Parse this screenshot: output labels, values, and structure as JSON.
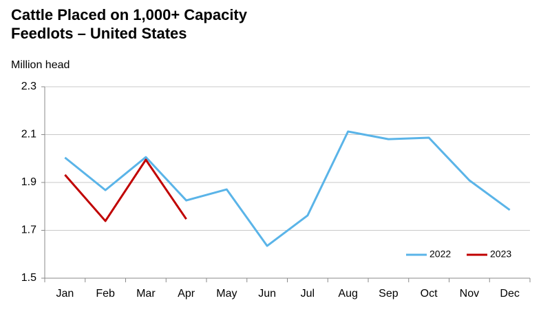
{
  "chart_data": {
    "type": "line",
    "title": "Cattle Placed on 1,000+ Capacity Feedlots – United States",
    "y_label": "Million head",
    "categories": [
      "Jan",
      "Feb",
      "Mar",
      "Apr",
      "May",
      "Jun",
      "Jul",
      "Aug",
      "Sep",
      "Oct",
      "Nov",
      "Dec"
    ],
    "series": [
      {
        "name": "2022",
        "color": "#5ab4e8",
        "values": [
          2.004,
          1.868,
          2.006,
          1.825,
          1.871,
          1.635,
          1.762,
          2.113,
          2.081,
          2.087,
          1.909,
          1.785
        ]
      },
      {
        "name": "2023",
        "color": "#c00000",
        "values": [
          1.932,
          1.739,
          1.995,
          1.747,
          null,
          null,
          null,
          null,
          null,
          null,
          null,
          null
        ]
      }
    ],
    "ylim": [
      1.5,
      2.3
    ],
    "yticks": [
      1.5,
      1.7,
      1.9,
      2.1,
      2.3
    ],
    "grid": true,
    "legend": "lower right"
  }
}
